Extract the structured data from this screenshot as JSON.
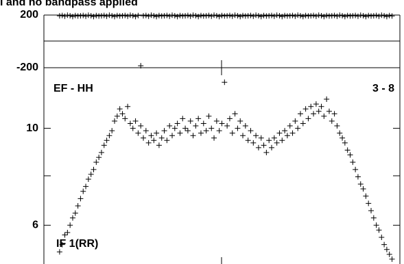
{
  "chart_data": [
    {
      "type": "scatter",
      "title": "l and no bandpass applied",
      "x": [
        1,
        2,
        3,
        4,
        5,
        6,
        7,
        8,
        9,
        10,
        11,
        12,
        13,
        14,
        15,
        16,
        17,
        18,
        19,
        20,
        21,
        22,
        23,
        24,
        25,
        26,
        27,
        28,
        29,
        30,
        31,
        32,
        33,
        34,
        35,
        36,
        37,
        38,
        39,
        40,
        41,
        42,
        43,
        44,
        45,
        46,
        47,
        48,
        49,
        50,
        51,
        52,
        53,
        54,
        55,
        56,
        57,
        58,
        59,
        60,
        61,
        62,
        63,
        64,
        65,
        66,
        67,
        68,
        69,
        70,
        71,
        72,
        73,
        74,
        75,
        76,
        77,
        78,
        79,
        80,
        81,
        82,
        83,
        84,
        85,
        86,
        87,
        88,
        89,
        90,
        91,
        92,
        93,
        94,
        95,
        96,
        97,
        98,
        99,
        100,
        101,
        102,
        103,
        104,
        105,
        106,
        107,
        108,
        109,
        110,
        111,
        112,
        113,
        114,
        115,
        116,
        117,
        118,
        119,
        120,
        121,
        122,
        123,
        124,
        125,
        126,
        127,
        128
      ],
      "values": [
        194,
        197,
        191,
        199,
        195,
        188,
        196,
        193,
        194,
        197,
        191,
        199,
        195,
        188,
        196,
        193,
        194,
        197,
        191,
        199,
        195,
        188,
        196,
        193,
        194,
        197,
        191,
        199,
        195,
        188,
        196,
        -185,
        194,
        197,
        191,
        199,
        195,
        188,
        196,
        193,
        194,
        197,
        191,
        199,
        195,
        188,
        196,
        193,
        194,
        197,
        191,
        199,
        195,
        188,
        196,
        193,
        194,
        197,
        191,
        199,
        195,
        188,
        196,
        193,
        194,
        197,
        191,
        199,
        195,
        188,
        196,
        193,
        194,
        197,
        191,
        199,
        195,
        188,
        196,
        193,
        194,
        197,
        191,
        199,
        195,
        188,
        196,
        193,
        194,
        197,
        191,
        199,
        195,
        188,
        196,
        193,
        194,
        197,
        191,
        199,
        195,
        188,
        196,
        193,
        194,
        197,
        191,
        199,
        195,
        188,
        196,
        193,
        194,
        197,
        191,
        199,
        195,
        188,
        196,
        193,
        194,
        197,
        191,
        199,
        195,
        188,
        196,
        193
      ],
      "xlim": [
        -5,
        131
      ],
      "ylim": [
        -200,
        200
      ],
      "yticks": [
        -200,
        200
      ],
      "color": "#000000"
    },
    {
      "type": "scatter",
      "annotations": [
        "EF - HH",
        "3 - 8",
        "IF 1(RR)"
      ],
      "x": [
        1,
        2,
        3,
        4,
        5,
        6,
        7,
        8,
        9,
        10,
        11,
        12,
        13,
        14,
        15,
        16,
        17,
        18,
        19,
        20,
        21,
        22,
        23,
        24,
        25,
        26,
        27,
        28,
        29,
        30,
        31,
        32,
        33,
        34,
        35,
        36,
        37,
        38,
        39,
        40,
        41,
        42,
        43,
        44,
        45,
        46,
        47,
        48,
        49,
        50,
        51,
        52,
        53,
        54,
        55,
        56,
        57,
        58,
        59,
        60,
        61,
        62,
        63,
        64,
        65,
        66,
        67,
        68,
        69,
        70,
        71,
        72,
        73,
        74,
        75,
        76,
        77,
        78,
        79,
        80,
        81,
        82,
        83,
        84,
        85,
        86,
        87,
        88,
        89,
        90,
        91,
        92,
        93,
        94,
        95,
        96,
        97,
        98,
        99,
        100,
        101,
        102,
        103,
        104,
        105,
        106,
        107,
        108,
        109,
        110,
        111,
        112,
        113,
        114,
        115,
        116,
        117,
        118,
        119,
        120,
        121,
        122,
        123,
        124,
        125,
        126,
        127,
        128
      ],
      "values": [
        4.9,
        5.2,
        5.6,
        5.7,
        6.0,
        6.3,
        6.5,
        6.8,
        7.1,
        7.4,
        7.6,
        7.9,
        8.1,
        8.3,
        8.6,
        8.8,
        9.0,
        9.3,
        9.5,
        9.7,
        9.9,
        10.3,
        10.5,
        10.8,
        10.6,
        10.4,
        10.9,
        10.2,
        10.0,
        10.3,
        9.8,
        10.1,
        9.6,
        9.9,
        9.4,
        9.7,
        9.5,
        9.8,
        9.3,
        9.6,
        9.9,
        9.5,
        10.1,
        9.7,
        10.0,
        10.2,
        9.8,
        10.4,
        10.0,
        9.9,
        10.3,
        9.7,
        10.1,
        10.4,
        9.8,
        10.2,
        9.9,
        10.5,
        10.0,
        9.6,
        10.3,
        9.9,
        10.2,
        11.9,
        10.1,
        10.4,
        9.8,
        10.6,
        10.0,
        10.3,
        9.7,
        10.1,
        9.5,
        9.9,
        9.4,
        9.7,
        9.2,
        9.6,
        9.3,
        9.0,
        9.5,
        9.2,
        9.6,
        9.4,
        9.8,
        9.5,
        9.9,
        9.7,
        10.1,
        9.8,
        10.3,
        10.0,
        10.6,
        10.2,
        10.8,
        10.4,
        10.9,
        10.6,
        11.0,
        10.7,
        10.9,
        10.5,
        11.2,
        10.7,
        10.3,
        10.6,
        10.1,
        9.8,
        9.6,
        9.4,
        9.1,
        8.9,
        8.6,
        8.3,
        8.0,
        7.7,
        7.5,
        7.2,
        6.9,
        6.6,
        6.3,
        6.0,
        5.8,
        5.5,
        5.2,
        5.0,
        4.8,
        4.6
      ],
      "xlim": [
        -5,
        131
      ],
      "ylim": [
        4.4,
        12.5
      ],
      "yticks": [
        6,
        10
      ],
      "color": "#000000"
    }
  ]
}
